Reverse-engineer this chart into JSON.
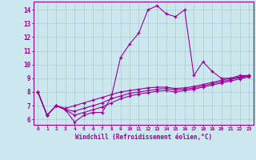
{
  "xlabel": "Windchill (Refroidissement éolien,°C)",
  "bg_color": "#cce8ee",
  "grid_color": "#aacccc",
  "line_color": "#990099",
  "xlim": [
    -0.5,
    23.5
  ],
  "ylim": [
    5.6,
    14.6
  ],
  "xticks": [
    0,
    1,
    2,
    3,
    4,
    5,
    6,
    7,
    8,
    9,
    10,
    11,
    12,
    13,
    14,
    15,
    16,
    17,
    18,
    19,
    20,
    21,
    22,
    23
  ],
  "yticks": [
    6,
    7,
    8,
    9,
    10,
    11,
    12,
    13,
    14
  ],
  "curves": [
    [
      8.0,
      6.3,
      7.0,
      6.7,
      5.8,
      6.3,
      6.5,
      6.5,
      7.6,
      10.5,
      11.5,
      12.3,
      14.0,
      14.3,
      13.7,
      13.5,
      14.0,
      9.2,
      10.2,
      9.5,
      9.0,
      9.0,
      9.2,
      9.2
    ],
    [
      8.0,
      6.3,
      7.0,
      6.8,
      7.0,
      7.2,
      7.4,
      7.6,
      7.8,
      8.0,
      8.1,
      8.2,
      8.3,
      8.35,
      8.35,
      8.25,
      8.3,
      8.4,
      8.55,
      8.7,
      8.85,
      9.0,
      9.1,
      9.2
    ],
    [
      8.0,
      6.3,
      7.0,
      6.7,
      6.6,
      6.8,
      7.0,
      7.2,
      7.5,
      7.7,
      7.9,
      8.0,
      8.1,
      8.2,
      8.25,
      8.15,
      8.2,
      8.3,
      8.45,
      8.6,
      8.75,
      8.9,
      9.05,
      9.15
    ],
    [
      8.0,
      6.3,
      7.0,
      6.7,
      6.3,
      6.5,
      6.7,
      6.9,
      7.2,
      7.5,
      7.7,
      7.85,
      7.95,
      8.05,
      8.1,
      8.0,
      8.1,
      8.2,
      8.35,
      8.5,
      8.65,
      8.8,
      8.95,
      9.1
    ]
  ]
}
